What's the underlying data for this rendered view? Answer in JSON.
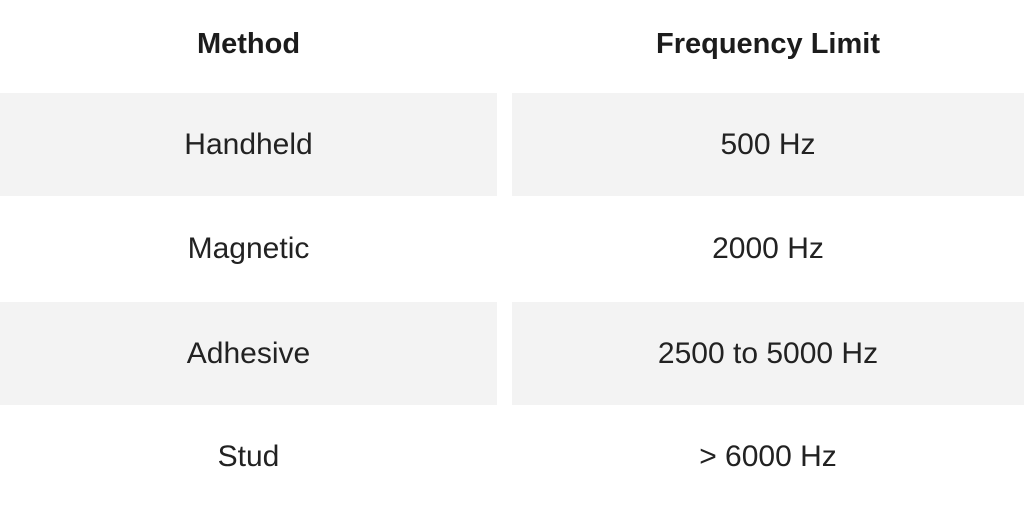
{
  "table": {
    "headers": [
      "Method",
      "Frequency Limit"
    ],
    "rows": [
      [
        "Handheld",
        "500 Hz"
      ],
      [
        "Magnetic",
        "2000 Hz"
      ],
      [
        "Adhesive",
        "2500 to 5000 Hz"
      ],
      [
        "Stud",
        "> 6000 Hz"
      ]
    ]
  }
}
